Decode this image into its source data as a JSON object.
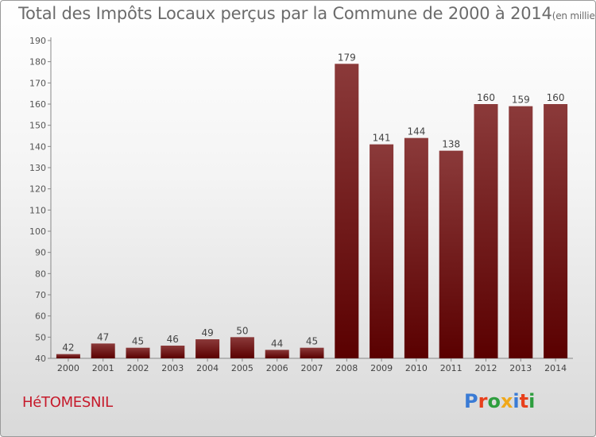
{
  "chart_data": {
    "type": "bar",
    "title": "Total des Impôts Locaux perçus par la Commune de 2000 à 2014",
    "unit": "(en milliers d'€)",
    "categories": [
      "2000",
      "2001",
      "2002",
      "2003",
      "2004",
      "2005",
      "2006",
      "2007",
      "2008",
      "2009",
      "2010",
      "2011",
      "2012",
      "2013",
      "2014"
    ],
    "values": [
      42,
      47,
      45,
      46,
      49,
      50,
      44,
      45,
      179,
      141,
      144,
      138,
      160,
      159,
      160
    ],
    "ylim": [
      40,
      190
    ],
    "yticks": [
      40,
      50,
      60,
      70,
      80,
      90,
      100,
      110,
      120,
      130,
      140,
      150,
      160,
      170,
      180,
      190
    ],
    "xlabel": "",
    "ylabel": "",
    "bar_color_top": "#8b3a3a",
    "bar_color_bottom": "#5a0000",
    "grid": false
  },
  "footer": {
    "commune": "HéTOMESNIL",
    "logo_letters": [
      "P",
      "r",
      "o",
      "x",
      "i",
      "t",
      "i"
    ],
    "logo_colors": [
      "#3a7bd5",
      "#e8401c",
      "#2e9e3e",
      "#f0a81a",
      "#3a7bd5",
      "#e8401c",
      "#2e9e3e"
    ]
  }
}
